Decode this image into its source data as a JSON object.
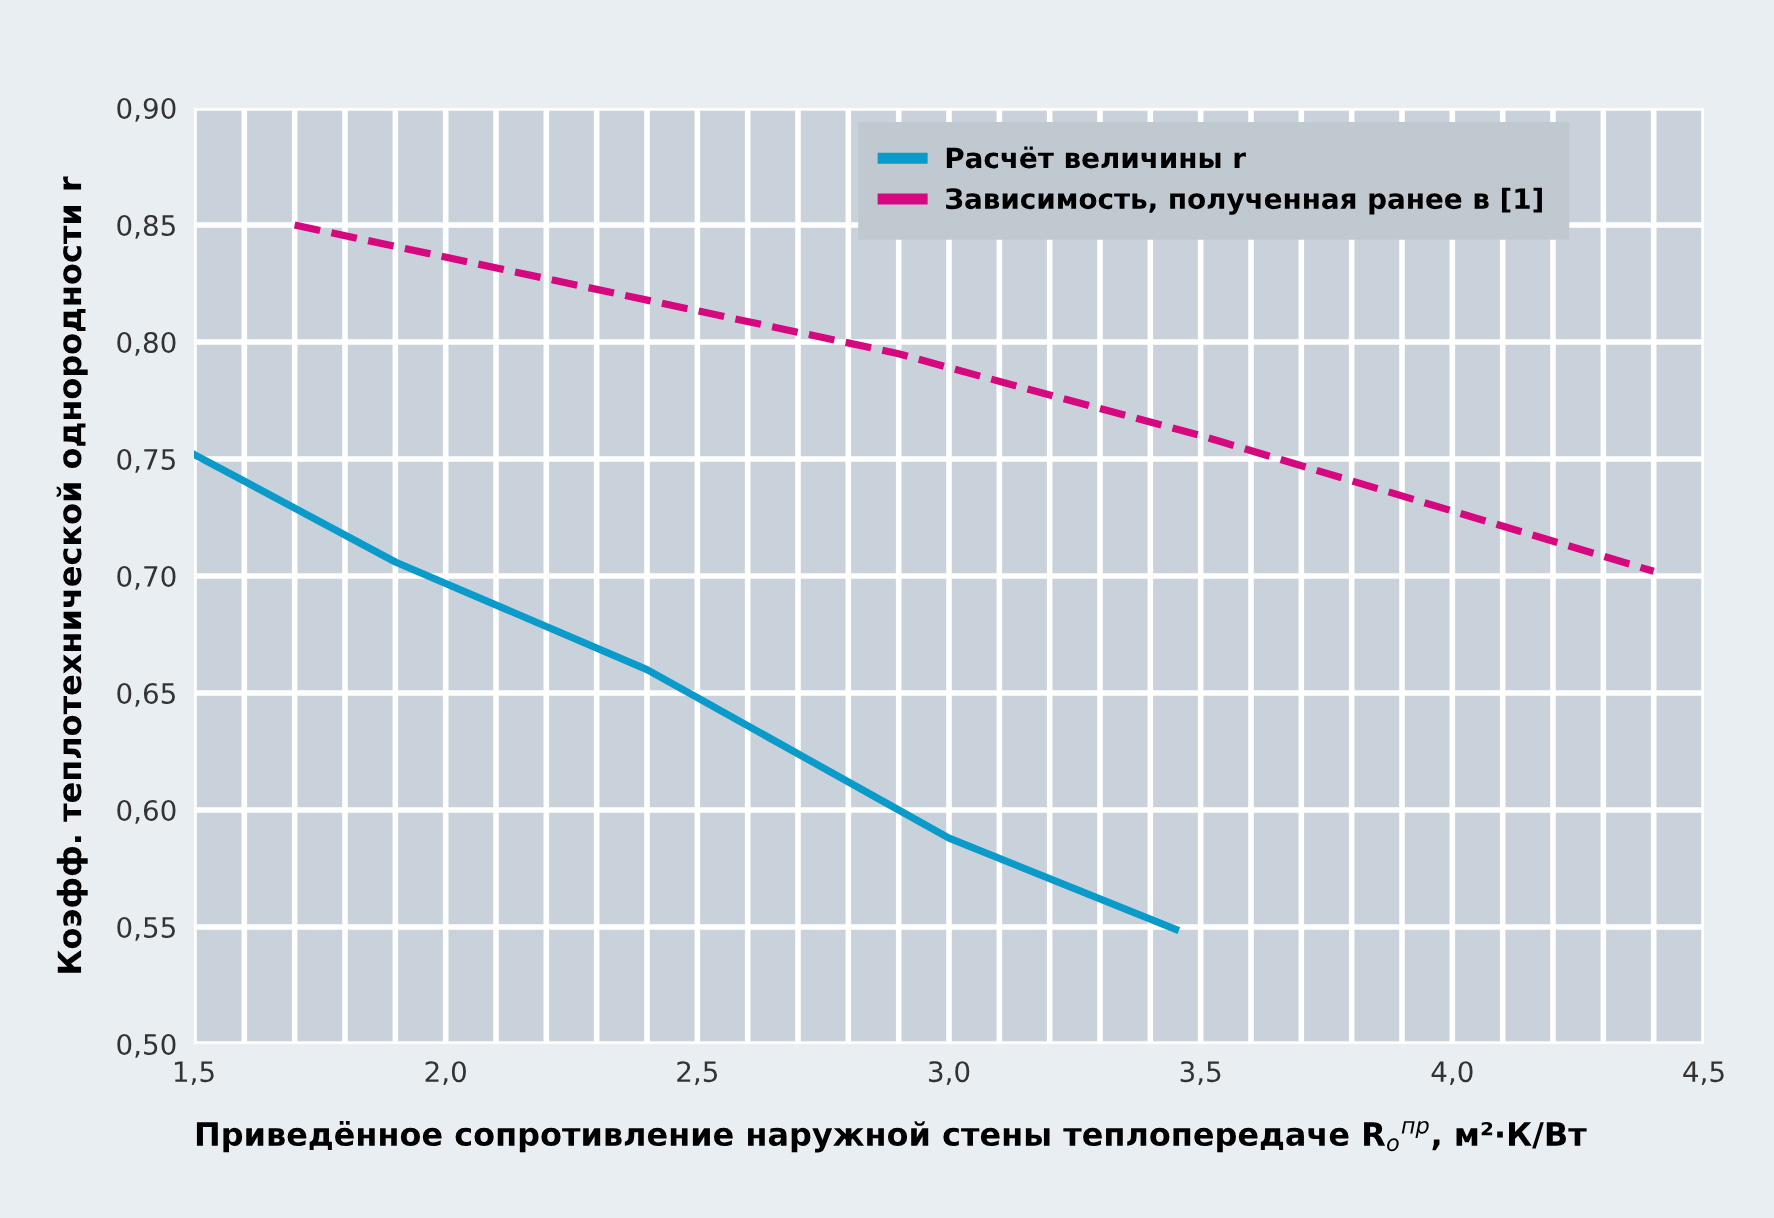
{
  "chart_data": {
    "type": "line",
    "xlabel": "Приведённое сопротивление наружной стены теплопередаче R$_{о}$$^{пр}$, м²·К/Вт",
    "ylabel": "Коэфф. теплотехнической однородности r",
    "series": [
      {
        "name": "Расчёт величины r",
        "color": "#0a9bcb",
        "line_style": "solid",
        "x": [
          1.5,
          1.9,
          2.4,
          2.5,
          2.9,
          3.0,
          3.45
        ],
        "values": [
          0.752,
          0.706,
          0.66,
          0.648,
          0.6,
          0.588,
          0.549
        ]
      },
      {
        "name": "Зависимость, полученная ранее в [1]",
        "color": "#d6087f",
        "line_style": "dashed",
        "x": [
          1.7,
          2.9,
          3.0,
          3.5,
          4.4
        ],
        "values": [
          0.85,
          0.795,
          0.789,
          0.76,
          0.702
        ]
      }
    ],
    "xlim": [
      1.5,
      4.5
    ],
    "ylim": [
      0.5,
      0.9
    ],
    "xticks": [
      {
        "value": 1.5,
        "label": "1,5"
      },
      {
        "value": 1.6,
        "label": null
      },
      {
        "value": 1.7,
        "label": null
      },
      {
        "value": 1.8,
        "label": null
      },
      {
        "value": 1.9,
        "label": null
      },
      {
        "value": 2.0,
        "label": "2,0"
      },
      {
        "value": 2.1,
        "label": null
      },
      {
        "value": 2.2,
        "label": null
      },
      {
        "value": 2.3,
        "label": null
      },
      {
        "value": 2.4,
        "label": null
      },
      {
        "value": 2.5,
        "label": "2,5"
      },
      {
        "value": 2.6,
        "label": null
      },
      {
        "value": 2.7,
        "label": null
      },
      {
        "value": 2.8,
        "label": null
      },
      {
        "value": 2.9,
        "label": null
      },
      {
        "value": 3.0,
        "label": "3,0"
      },
      {
        "value": 3.1,
        "label": null
      },
      {
        "value": 3.2,
        "label": null
      },
      {
        "value": 3.3,
        "label": null
      },
      {
        "value": 3.4,
        "label": null
      },
      {
        "value": 3.5,
        "label": "3,5"
      },
      {
        "value": 3.6,
        "label": null
      },
      {
        "value": 3.7,
        "label": null
      },
      {
        "value": 3.8,
        "label": null
      },
      {
        "value": 3.9,
        "label": null
      },
      {
        "value": 4.0,
        "label": "4,0"
      },
      {
        "value": 4.1,
        "label": null
      },
      {
        "value": 4.2,
        "label": null
      },
      {
        "value": 4.3,
        "label": null
      },
      {
        "value": 4.4,
        "label": null
      },
      {
        "value": 4.5,
        "label": "4,5"
      }
    ],
    "yticks": [
      {
        "value": 0.5,
        "label": "0,50"
      },
      {
        "value": 0.55,
        "label": "0,55"
      },
      {
        "value": 0.6,
        "label": "0,60"
      },
      {
        "value": 0.65,
        "label": "0,65"
      },
      {
        "value": 0.7,
        "label": "0,70"
      },
      {
        "value": 0.75,
        "label": "0,75"
      },
      {
        "value": 0.8,
        "label": "0,80"
      },
      {
        "value": 0.85,
        "label": "0,85"
      },
      {
        "value": 0.9,
        "label": "0,90"
      }
    ],
    "grid": true,
    "legend": "top right",
    "marker": "none"
  }
}
